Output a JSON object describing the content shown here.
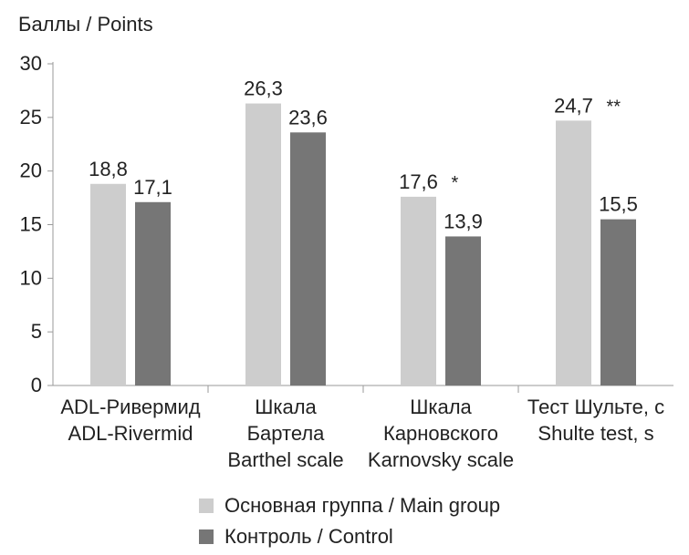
{
  "chart_data": {
    "type": "bar",
    "ylabel": "Баллы / Points",
    "ylim": [
      0,
      30
    ],
    "yticks": [
      "0",
      "5",
      "10",
      "15",
      "20",
      "25",
      "30"
    ],
    "grid": false,
    "legend_position": "bottom",
    "categories": [
      [
        "ADL-Ривермид",
        "ADL-Rivermid"
      ],
      [
        "Шкала",
        "Бартела",
        "Barthel scale"
      ],
      [
        "Шкала",
        "Карновского",
        "Karnovsky scale"
      ],
      [
        "Тест Шульте, с",
        "Shulte test, s"
      ]
    ],
    "series": [
      {
        "name": "Основная группа / Main group",
        "color": "#cdcdcd",
        "values": [
          18.8,
          26.3,
          17.6,
          24.7
        ],
        "labels": [
          "18,8",
          "26,3",
          "17,6",
          "24,7"
        ]
      },
      {
        "name": "Контроль / Control",
        "color": "#767676",
        "values": [
          17.1,
          23.6,
          13.9,
          15.5
        ],
        "labels": [
          "17,1",
          "23,6",
          "13,9",
          "15,5"
        ]
      }
    ],
    "annotations": [
      {
        "category_index": 2,
        "series_index": 0,
        "text": "*"
      },
      {
        "category_index": 3,
        "series_index": 0,
        "text": "**"
      }
    ]
  }
}
